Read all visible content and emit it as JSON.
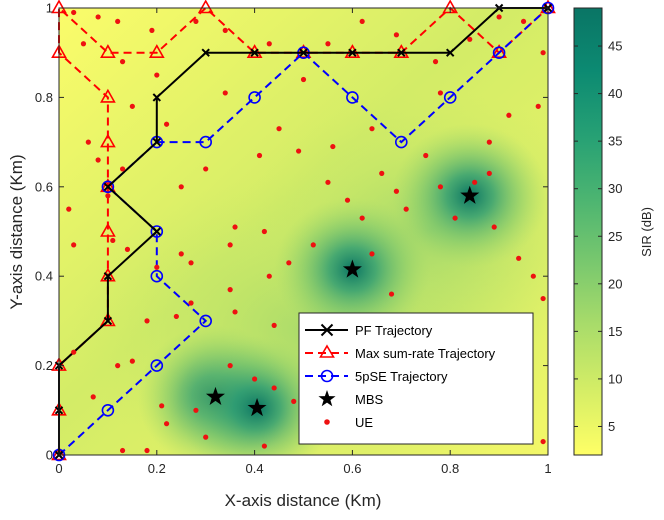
{
  "chart_data": {
    "type": "line",
    "xlabel": "X-axis distance (Km)",
    "ylabel": "Y-axis distance (Km)",
    "xlim": [
      0,
      1
    ],
    "ylim": [
      0,
      1
    ],
    "x_ticks": [
      "0",
      "0.2",
      "0.4",
      "0.6",
      "0.8",
      "1"
    ],
    "y_ticks": [
      "0",
      "0.2",
      "0.4",
      "0.6",
      "0.8",
      "1"
    ],
    "colorbar": {
      "label": "SIR (dB)",
      "range": [
        2,
        49
      ],
      "ticks": [
        "5",
        "10",
        "15",
        "20",
        "25",
        "30",
        "35",
        "40",
        "45"
      ],
      "colormap": [
        "#ffff66",
        "#d6ee66",
        "#a9dc6a",
        "#79c86e",
        "#4db571",
        "#27a174",
        "#0c8a72",
        "#0a7565"
      ]
    },
    "legend": {
      "location": "bottom-right",
      "entries": [
        "PF Trajectory",
        "Max sum-rate Trajectory",
        "5pSE Trajectory",
        "MBS",
        "UE"
      ]
    },
    "series": [
      {
        "name": "PF Trajectory",
        "color": "#000000",
        "marker": "x",
        "line": "solid",
        "points": [
          [
            0,
            0
          ],
          [
            0,
            0.1
          ],
          [
            0,
            0.2
          ],
          [
            0.1,
            0.3
          ],
          [
            0.1,
            0.4
          ],
          [
            0.2,
            0.5
          ],
          [
            0.1,
            0.6
          ],
          [
            0.2,
            0.7
          ],
          [
            0.2,
            0.8
          ],
          [
            0.3,
            0.9
          ],
          [
            0.4,
            0.9
          ],
          [
            0.5,
            0.9
          ],
          [
            0.6,
            0.9
          ],
          [
            0.7,
            0.9
          ],
          [
            0.8,
            0.9
          ],
          [
            0.9,
            1.0
          ],
          [
            1.0,
            1.0
          ]
        ]
      },
      {
        "name": "Max sum-rate Trajectory",
        "color": "#ff0000",
        "marker": "triangle",
        "line": "dashed",
        "points": [
          [
            0,
            0
          ],
          [
            0,
            0.1
          ],
          [
            0,
            0.2
          ],
          [
            0.1,
            0.3
          ],
          [
            0.1,
            0.4
          ],
          [
            0.1,
            0.5
          ],
          [
            0.1,
            0.6
          ],
          [
            0.1,
            0.7
          ],
          [
            0.1,
            0.8
          ],
          [
            0,
            0.9
          ],
          [
            0,
            1.0
          ],
          [
            0.1,
            0.9
          ],
          [
            0.2,
            0.9
          ],
          [
            0.3,
            1.0
          ],
          [
            0.4,
            0.9
          ],
          [
            0.5,
            0.9
          ],
          [
            0.6,
            0.9
          ],
          [
            0.7,
            0.9
          ],
          [
            0.8,
            1.0
          ],
          [
            0.9,
            0.9
          ],
          [
            1.0,
            1.0
          ]
        ]
      },
      {
        "name": "5pSE Trajectory",
        "color": "#0000ff",
        "marker": "circle",
        "line": "dashed",
        "points": [
          [
            0,
            0
          ],
          [
            0.1,
            0.1
          ],
          [
            0.2,
            0.2
          ],
          [
            0.3,
            0.3
          ],
          [
            0.2,
            0.4
          ],
          [
            0.2,
            0.5
          ],
          [
            0.1,
            0.6
          ],
          [
            0.2,
            0.7
          ],
          [
            0.3,
            0.7
          ],
          [
            0.4,
            0.8
          ],
          [
            0.5,
            0.9
          ],
          [
            0.6,
            0.8
          ],
          [
            0.7,
            0.7
          ],
          [
            0.8,
            0.8
          ],
          [
            0.9,
            0.9
          ],
          [
            1.0,
            1.0
          ]
        ]
      }
    ],
    "mbs": [
      [
        0.32,
        0.13
      ],
      [
        0.405,
        0.105
      ],
      [
        0.6,
        0.415
      ],
      [
        0.84,
        0.58
      ]
    ],
    "ue": [
      [
        0.03,
        0.99
      ],
      [
        0.05,
        0.92
      ],
      [
        0.08,
        0.98
      ],
      [
        0.12,
        0.97
      ],
      [
        0.19,
        0.95
      ],
      [
        0.2,
        0.85
      ],
      [
        0.22,
        0.74
      ],
      [
        0.15,
        0.78
      ],
      [
        0.13,
        0.88
      ],
      [
        0.28,
        0.97
      ],
      [
        0.34,
        0.95
      ],
      [
        0.43,
        0.92
      ],
      [
        0.55,
        0.92
      ],
      [
        0.62,
        0.97
      ],
      [
        0.69,
        0.94
      ],
      [
        0.77,
        0.88
      ],
      [
        0.84,
        0.93
      ],
      [
        0.9,
        0.98
      ],
      [
        0.95,
        0.97
      ],
      [
        0.99,
        0.9
      ],
      [
        0.34,
        0.81
      ],
      [
        0.5,
        0.84
      ],
      [
        0.45,
        0.73
      ],
      [
        0.56,
        0.69
      ],
      [
        0.49,
        0.68
      ],
      [
        0.41,
        0.67
      ],
      [
        0.3,
        0.64
      ],
      [
        0.25,
        0.6
      ],
      [
        0.1,
        0.58
      ],
      [
        0.08,
        0.66
      ],
      [
        0.06,
        0.7
      ],
      [
        0.13,
        0.64
      ],
      [
        0.02,
        0.55
      ],
      [
        0.03,
        0.47
      ],
      [
        0.11,
        0.48
      ],
      [
        0.14,
        0.46
      ],
      [
        0.2,
        0.42
      ],
      [
        0.27,
        0.43
      ],
      [
        0.25,
        0.45
      ],
      [
        0.35,
        0.47
      ],
      [
        0.36,
        0.51
      ],
      [
        0.42,
        0.5
      ],
      [
        0.52,
        0.47
      ],
      [
        0.47,
        0.43
      ],
      [
        0.43,
        0.4
      ],
      [
        0.35,
        0.37
      ],
      [
        0.36,
        0.32
      ],
      [
        0.44,
        0.29
      ],
      [
        0.53,
        0.31
      ],
      [
        0.5,
        0.3
      ],
      [
        0.55,
        0.24
      ],
      [
        0.58,
        0.2
      ],
      [
        0.6,
        0.23
      ],
      [
        0.62,
        0.25
      ],
      [
        0.7,
        0.18
      ],
      [
        0.75,
        0.29
      ],
      [
        0.68,
        0.36
      ],
      [
        0.64,
        0.45
      ],
      [
        0.62,
        0.53
      ],
      [
        0.59,
        0.57
      ],
      [
        0.66,
        0.63
      ],
      [
        0.69,
        0.59
      ],
      [
        0.71,
        0.55
      ],
      [
        0.75,
        0.67
      ],
      [
        0.78,
        0.6
      ],
      [
        0.81,
        0.53
      ],
      [
        0.85,
        0.61
      ],
      [
        0.89,
        0.51
      ],
      [
        0.94,
        0.44
      ],
      [
        0.97,
        0.4
      ],
      [
        0.99,
        0.35
      ],
      [
        0.88,
        0.63
      ],
      [
        0.92,
        0.76
      ],
      [
        0.98,
        0.78
      ],
      [
        0.88,
        0.7
      ],
      [
        0.78,
        0.81
      ],
      [
        0.64,
        0.73
      ],
      [
        0.55,
        0.61
      ],
      [
        0.27,
        0.34
      ],
      [
        0.24,
        0.31
      ],
      [
        0.18,
        0.3
      ],
      [
        0.15,
        0.21
      ],
      [
        0.21,
        0.11
      ],
      [
        0.22,
        0.07
      ],
      [
        0.3,
        0.04
      ],
      [
        0.18,
        0.01
      ],
      [
        0.13,
        0.01
      ],
      [
        0.03,
        0.23
      ],
      [
        0.07,
        0.13
      ],
      [
        0.12,
        0.2
      ],
      [
        0.35,
        0.2
      ],
      [
        0.4,
        0.17
      ],
      [
        0.44,
        0.15
      ],
      [
        0.48,
        0.12
      ],
      [
        0.28,
        0.1
      ],
      [
        0.42,
        0.02
      ],
      [
        0.93,
        0.3
      ],
      [
        0.96,
        0.09
      ],
      [
        0.99,
        0.03
      ],
      [
        0.88,
        0.11
      ],
      [
        0.83,
        0.16
      ],
      [
        0.79,
        0.05
      ]
    ]
  }
}
